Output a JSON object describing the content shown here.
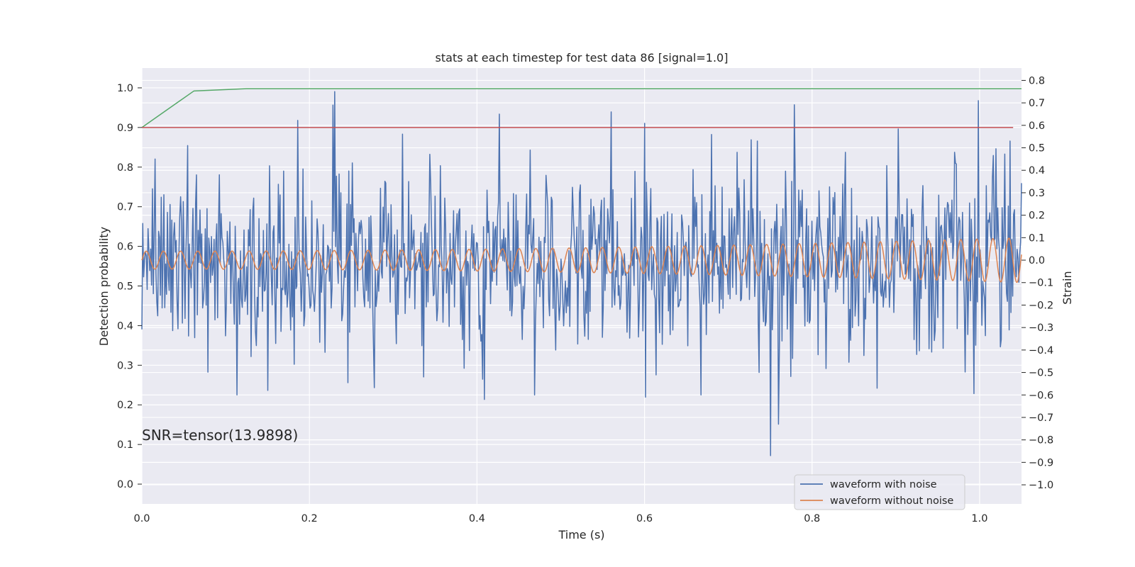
{
  "chart_data": {
    "type": "line",
    "title": "stats at each timestep for test data 86 [signal=1.0]",
    "xlabel": "Time (s)",
    "ylabel": "Detection probability",
    "y2label": "Strain",
    "annotation": "SNR=tensor(13.9898)",
    "xlim": [
      0.0,
      1.05
    ],
    "ylim": [
      -0.05,
      1.05
    ],
    "y2lim": [
      -1.085,
      0.855
    ],
    "xticks": [
      "0.0",
      "0.2",
      "0.4",
      "0.6",
      "0.8",
      "1.0"
    ],
    "yticks": [
      "0.0",
      "0.1",
      "0.2",
      "0.3",
      "0.4",
      "0.5",
      "0.6",
      "0.7",
      "0.8",
      "0.9",
      "1.0"
    ],
    "y2ticks": [
      "−1.0",
      "−0.9",
      "−0.8",
      "−0.7",
      "−0.6",
      "−0.5",
      "−0.4",
      "−0.3",
      "−0.2",
      "−0.1",
      "0.0",
      "0.1",
      "0.2",
      "0.3",
      "0.4",
      "0.5",
      "0.6",
      "0.7",
      "0.8"
    ],
    "grid": true,
    "legend_position": "lower right",
    "legend": [
      {
        "label": "waveform with noise",
        "color": "#4c72b0"
      },
      {
        "label": "waveform without noise",
        "color": "#dd8452"
      }
    ],
    "series": [
      {
        "name": "waveform with noise",
        "axis": "right",
        "color": "#4c72b0",
        "t_start": 0.0,
        "t_end": 1.05,
        "n_points": 1000,
        "amplitude_std": 0.19,
        "peaks": [
          {
            "x": 0.016,
            "y": 0.45
          },
          {
            "x": 0.055,
            "y": 0.51
          },
          {
            "x": 0.092,
            "y": 0.38
          },
          {
            "x": 0.152,
            "y": 0.42
          },
          {
            "x": 0.228,
            "y": 0.69
          },
          {
            "x": 0.23,
            "y": 0.75
          },
          {
            "x": 0.285,
            "y": 0.32
          },
          {
            "x": 0.318,
            "y": 0.35
          },
          {
            "x": 0.427,
            "y": 0.65
          },
          {
            "x": 0.463,
            "y": 0.49
          },
          {
            "x": 0.56,
            "y": 0.66
          },
          {
            "x": 0.66,
            "y": 0.28
          },
          {
            "x": 0.71,
            "y": 0.48
          },
          {
            "x": 0.84,
            "y": 0.48
          },
          {
            "x": 0.97,
            "y": 0.48
          },
          {
            "x": 0.998,
            "y": 0.71
          },
          {
            "x": 1.036,
            "y": 0.53
          },
          {
            "x": 0.114,
            "y": -0.6
          },
          {
            "x": 0.15,
            "y": -0.58
          },
          {
            "x": 0.336,
            "y": -0.52
          },
          {
            "x": 0.407,
            "y": -0.53
          },
          {
            "x": 0.409,
            "y": -0.62
          },
          {
            "x": 0.469,
            "y": -0.6
          },
          {
            "x": 0.601,
            "y": -0.61
          },
          {
            "x": 0.667,
            "y": -0.6
          },
          {
            "x": 0.75,
            "y": -0.87
          },
          {
            "x": 0.76,
            "y": -0.73
          },
          {
            "x": 0.878,
            "y": -0.57
          }
        ]
      },
      {
        "name": "waveform without noise",
        "axis": "right",
        "color": "#dd8452",
        "t_start": 0.0,
        "t_end": 1.05,
        "n_points": 1600,
        "amplitude": 0.04,
        "amplitude_end": 0.1,
        "cycles": 51
      },
      {
        "name": "",
        "axis": "left",
        "color": "#55a868",
        "x": [
          0.0,
          0.062,
          0.125,
          1.05
        ],
        "y": [
          0.9,
          0.992,
          0.998,
          0.998
        ]
      },
      {
        "name": "",
        "axis": "left",
        "color": "#c44e52",
        "x": [
          0.0,
          1.04
        ],
        "y": [
          0.9,
          0.9
        ]
      }
    ]
  }
}
